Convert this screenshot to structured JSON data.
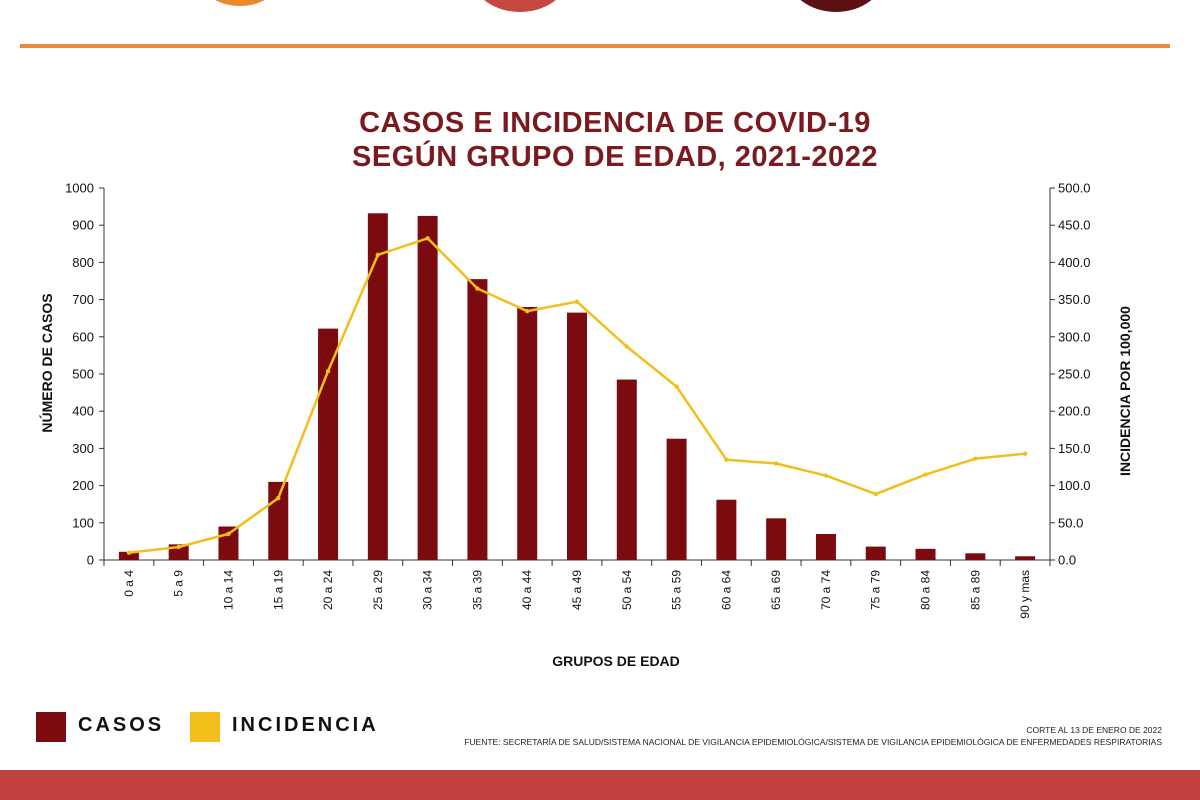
{
  "decor": {
    "circle_colors": [
      "#e8892e",
      "#c5473f",
      "#5b1113"
    ],
    "rule_color": "#ec8a3a",
    "bottom_bar_color": "#c0403d"
  },
  "chart_data": {
    "type": "bar",
    "title_line1": "CASOS E INCIDENCIA DE COVID-19",
    "title_line2": "SEGÚN GRUPO DE EDAD, 2021-2022",
    "xlabel": "GRUPOS DE EDAD",
    "ylabel": "NÚMERO DE CASOS",
    "y2label": "INCIDENCIA POR 100,000",
    "categories": [
      "0 a 4",
      "5 a 9",
      "10 a 14",
      "15 a 19",
      "20 a 24",
      "25 a 29",
      "30 a 34",
      "35 a 39",
      "40 a 44",
      "45 a 49",
      "50 a 54",
      "55 a 59",
      "60 a 64",
      "65 a 69",
      "70 a 74",
      "75 a 79",
      "80 a 84",
      "85 a 89",
      "90 y mas"
    ],
    "ylim": [
      0,
      1000
    ],
    "y2lim": [
      0,
      500
    ],
    "y_ticks": [
      "0",
      "100",
      "200",
      "300",
      "400",
      "500",
      "600",
      "700",
      "800",
      "900",
      "1000"
    ],
    "y2_ticks": [
      "0.0",
      "50.0",
      "100.0",
      "150.0",
      "200.0",
      "250.0",
      "300.0",
      "350.0",
      "400.0",
      "450.0",
      "500.0"
    ],
    "series": [
      {
        "name": "CASOS",
        "kind": "bar",
        "axis": "left",
        "color": "#7b0b0f",
        "values": [
          22,
          42,
          90,
          210,
          622,
          932,
          925,
          755,
          680,
          665,
          485,
          326,
          162,
          112,
          70,
          36,
          30,
          18,
          10
        ]
      },
      {
        "name": "INCIDENCIA",
        "kind": "line",
        "axis": "right",
        "color": "#f2be1a",
        "values": [
          9.8,
          17.5,
          35.1,
          83.2,
          253.9,
          410.1,
          432.4,
          364.9,
          334.5,
          347.2,
          286.8,
          233.1,
          134.8,
          129.7,
          113.5,
          88.6,
          114.8,
          136.2,
          142.9
        ]
      }
    ],
    "grid": false,
    "legend_position": "bottom-left"
  },
  "legend": {
    "casos_label": "CASOS",
    "incidencia_label": "INCIDENCIA"
  },
  "footer": {
    "corte": "CORTE AL 13 DE ENERO DE 2022",
    "fuente": "FUENTE: SECRETARÍA DE SALUD/SISTEMA NACIONAL DE VIGILANCIA EPIDEMIOLÓGICA/SISTEMA DE VIGILANCIA EPIDEMIOLÓGICA DE ENFERMEDADES RESPIRATORIAS"
  }
}
